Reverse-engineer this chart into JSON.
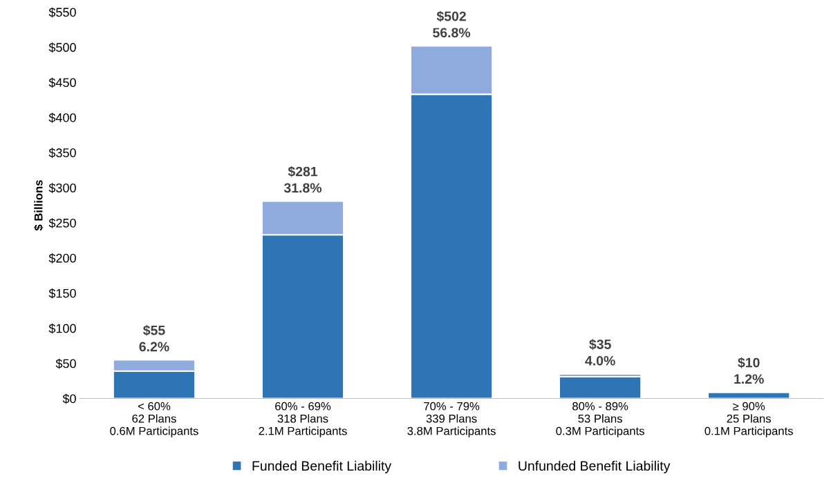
{
  "chart_data": {
    "type": "bar",
    "stacked": true,
    "ylabel": "$ Billions",
    "categories": [
      "< 60%\n62 Plans\n0.6M Participants",
      "60% - 69%\n318 Plans\n2.1M Participants",
      "70% - 79%\n339 Plans\n3.8M Participants",
      "80% - 89%\n53 Plans\n0.3M Participants",
      "≥ 90%\n25 Plans\n0.1M Participants"
    ],
    "series": [
      {
        "name": "Funded Benefit Liability",
        "color": "#2e75b6",
        "values": [
          39,
          233,
          433,
          31,
          9
        ]
      },
      {
        "name": "Unfunded Benefit Liability",
        "color": "#8faadc",
        "values": [
          16,
          48,
          69,
          4,
          null
        ]
      }
    ],
    "totals": [
      "$55\n6.2%",
      "$281\n31.8%",
      "$502\n56.8%",
      "$35\n4.0%",
      "$10\n1.2%"
    ],
    "ylim": [
      0,
      550
    ],
    "yticks": [
      {
        "value": 0,
        "label": "$0"
      },
      {
        "value": 50,
        "label": "$50"
      },
      {
        "value": 100,
        "label": "$100"
      },
      {
        "value": 150,
        "label": "$150"
      },
      {
        "value": 200,
        "label": "$200"
      },
      {
        "value": 250,
        "label": "$250"
      },
      {
        "value": 300,
        "label": "$300"
      },
      {
        "value": 350,
        "label": "$350"
      },
      {
        "value": 400,
        "label": "$400"
      },
      {
        "value": 450,
        "label": "$450"
      },
      {
        "value": 500,
        "label": "$500"
      },
      {
        "value": 550,
        "label": "$550"
      }
    ],
    "grid": false,
    "legend": "bottom"
  }
}
